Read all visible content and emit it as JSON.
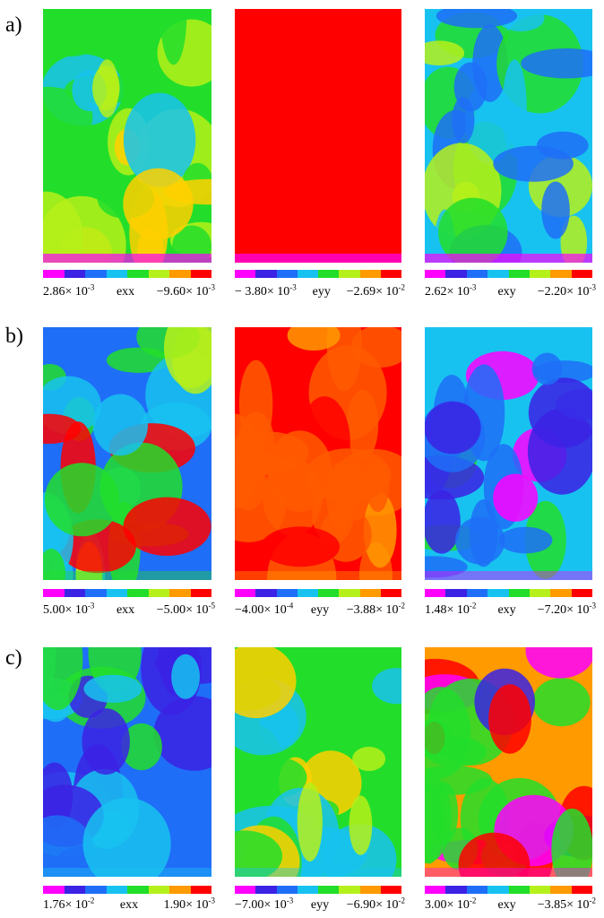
{
  "colormap": [
    "#ff00ff",
    "#3b22e4",
    "#1f6ef7",
    "#18c2f0",
    "#22de2a",
    "#b6f01a",
    "#ff9a00",
    "#ff0000"
  ],
  "rows": [
    {
      "label": "a)",
      "panels": [
        {
          "min_text": "2.86× 10",
          "min_exp": "-3",
          "var": "exx",
          "max_text": "−9.60× 10",
          "max_exp": "-3",
          "palette": [
            "#22de2a",
            "#b6f01a",
            "#b6f01a",
            "#ffd000",
            "#22de2a",
            "#18c2f0"
          ]
        },
        {
          "min_text": "− 3.80× 10",
          "min_exp": "-3",
          "var": "eyy",
          "max_text": "−2.69× 10",
          "max_exp": "-2",
          "palette": [
            "#ff0000",
            "#ff0000",
            "#ff0000",
            "#ff0000",
            "#ff0000",
            "#ff0000"
          ]
        },
        {
          "min_text": "2.62× 10",
          "min_exp": "-3",
          "var": "exy",
          "max_text": "−2.20× 10",
          "max_exp": "-3",
          "palette": [
            "#18c2f0",
            "#1f6ef7",
            "#22de2a",
            "#18c2f0",
            "#1f6ef7",
            "#b6f01a"
          ]
        }
      ]
    },
    {
      "label": "b)",
      "panels": [
        {
          "min_text": "5.00× 10",
          "min_exp": "-3",
          "var": "exx",
          "max_text": "−5.00× 10",
          "max_exp": "-5",
          "palette": [
            "#1f6ef7",
            "#18c2f0",
            "#22de2a",
            "#b6f01a",
            "#ff0000",
            "#22de2a"
          ]
        },
        {
          "min_text": "−4.00× 10",
          "min_exp": "-4",
          "var": "eyy",
          "max_text": "−3.88× 10",
          "max_exp": "-2",
          "palette": [
            "#ff0000",
            "#ff0000",
            "#ff5a00",
            "#ff5a00",
            "#ff5a00",
            "#ff9a00"
          ]
        },
        {
          "min_text": "1.48× 10",
          "min_exp": "-2",
          "var": "exy",
          "max_text": "−7.20× 10",
          "max_exp": "-3",
          "palette": [
            "#18c2f0",
            "#18c2f0",
            "#22de2a",
            "#1f6ef7",
            "#3b22e4",
            "#ff00ff"
          ]
        }
      ]
    },
    {
      "label": "c)",
      "panels": [
        {
          "min_text": "1.76× 10",
          "min_exp": "-2",
          "var": "exx",
          "max_text": "1.90× 10",
          "max_exp": "-3",
          "palette": [
            "#1f6ef7",
            "#18c2f0",
            "#3b22e4",
            "#22de2a",
            "#1f6ef7",
            "#18c2f0"
          ]
        },
        {
          "min_text": "−7.00× 10",
          "min_exp": "-3",
          "var": "eyy",
          "max_text": "−6.90× 10",
          "max_exp": "-2",
          "palette": [
            "#22de2a",
            "#b6f01a",
            "#22de2a",
            "#ffd000",
            "#22de2a",
            "#18c2f0"
          ]
        },
        {
          "min_text": "3.00× 10",
          "min_exp": "-2",
          "var": "exy",
          "max_text": "−3.85× 10",
          "max_exp": "-2",
          "palette": [
            "#ff9a00",
            "#ff0000",
            "#22de2a",
            "#22de2a",
            "#3b22e4",
            "#ff00ff"
          ]
        }
      ]
    }
  ]
}
